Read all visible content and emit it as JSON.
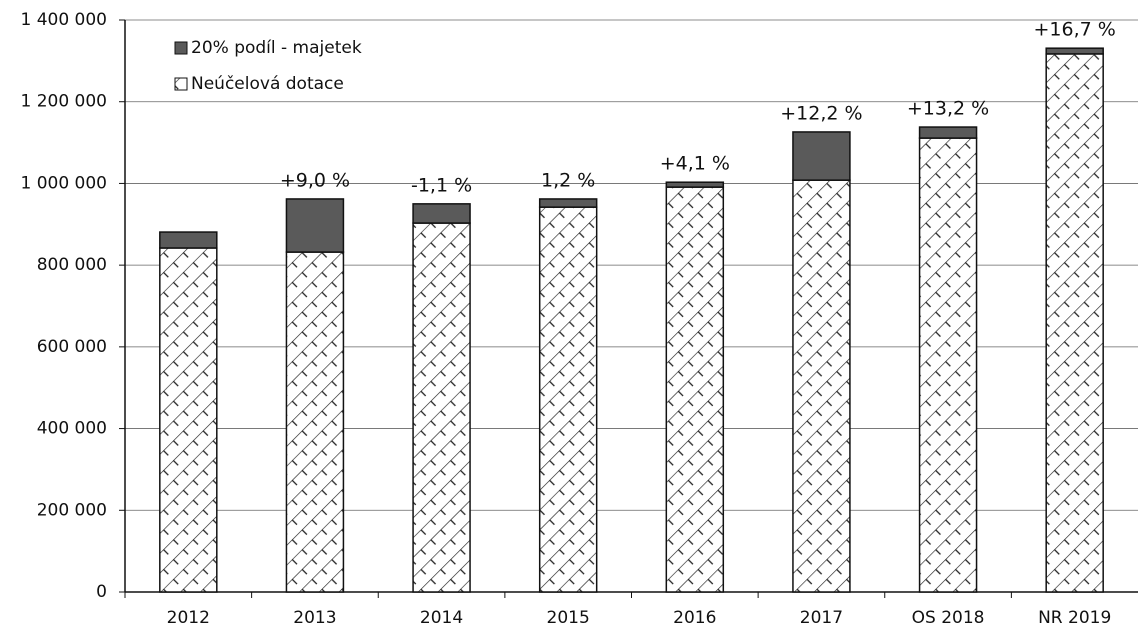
{
  "chart_data": {
    "type": "stacked_bar",
    "categories": [
      "2012",
      "2013",
      "2014",
      "2015",
      "2016",
      "2017",
      "OS 2018",
      "NR 2019"
    ],
    "series": [
      {
        "name": "Neúčelová dotace",
        "color": "#ffffff",
        "pattern": "crosshatch",
        "values": [
          842000,
          832000,
          903000,
          942000,
          991000,
          1008000,
          1111000,
          1317000
        ]
      },
      {
        "name": "20% podíl - majetek",
        "color": "#5a5a5a",
        "values": [
          39000,
          130000,
          47000,
          20000,
          12000,
          118000,
          27000,
          14000
        ]
      }
    ],
    "annotations": [
      null,
      "+9,0 %",
      "-1,1 %",
      "1,2 %",
      "+4,1 %",
      "+12,2 %",
      "+13,2 %",
      "+16,7 %"
    ],
    "ylim": [
      0,
      1400000
    ],
    "yticks": [
      0,
      {
        "value": 200000,
        "label": "200 000"
      },
      {
        "value": 400000,
        "label": "400 000"
      },
      {
        "value": 600000,
        "label": "600 000"
      },
      {
        "value": 800000,
        "label": "800 000"
      },
      {
        "value": 1000000,
        "label": "1 000 000"
      },
      {
        "value": 1200000,
        "label": "1 200 000"
      },
      {
        "value": 1400000,
        "label": "1 400 000"
      }
    ],
    "grid": true,
    "legend": "top-left"
  }
}
